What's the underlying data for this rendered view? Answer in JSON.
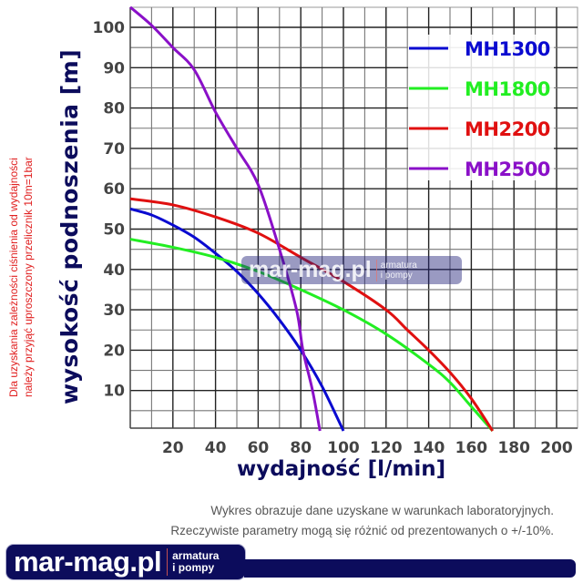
{
  "chart_data": {
    "type": "line",
    "xlabel": "wydajność [l/min]",
    "ylabel": "wysokość podnoszenia [m]",
    "xlim": [
      0,
      210
    ],
    "ylim": [
      0,
      105
    ],
    "xticks": [
      "20",
      "40",
      "60",
      "80",
      "100",
      "120",
      "140",
      "160",
      "180",
      "200"
    ],
    "yticks": [
      "10",
      "20",
      "30",
      "40",
      "50",
      "60",
      "70",
      "80",
      "90",
      "100"
    ],
    "grid": true,
    "legend_position": "top-right",
    "series": [
      {
        "name": "MH1300",
        "color": "#0a0ad0",
        "points": [
          [
            0,
            55
          ],
          [
            10,
            53.5
          ],
          [
            20,
            51
          ],
          [
            30,
            48
          ],
          [
            40,
            44
          ],
          [
            50,
            39.5
          ],
          [
            60,
            34
          ],
          [
            70,
            27.5
          ],
          [
            80,
            20
          ],
          [
            90,
            11
          ],
          [
            100,
            0
          ]
        ]
      },
      {
        "name": "MH1800",
        "color": "#22ee22",
        "points": [
          [
            0,
            47.5
          ],
          [
            20,
            45.5
          ],
          [
            40,
            43
          ],
          [
            60,
            39.5
          ],
          [
            80,
            35
          ],
          [
            100,
            30
          ],
          [
            120,
            24
          ],
          [
            140,
            16.5
          ],
          [
            150,
            12
          ],
          [
            160,
            6
          ],
          [
            170,
            0
          ]
        ]
      },
      {
        "name": "MH2200",
        "color": "#e01010",
        "points": [
          [
            0,
            57.5
          ],
          [
            20,
            56
          ],
          [
            40,
            53
          ],
          [
            60,
            49
          ],
          [
            80,
            43
          ],
          [
            100,
            37
          ],
          [
            120,
            30
          ],
          [
            130,
            25
          ],
          [
            140,
            20
          ],
          [
            150,
            14.5
          ],
          [
            160,
            8
          ],
          [
            170,
            0
          ]
        ]
      },
      {
        "name": "MH2500",
        "color": "#8a10c8",
        "points": [
          [
            0,
            105
          ],
          [
            10,
            100.5
          ],
          [
            20,
            95
          ],
          [
            30,
            89.5
          ],
          [
            40,
            79
          ],
          [
            50,
            70
          ],
          [
            60,
            61
          ],
          [
            70,
            45
          ],
          [
            78,
            30
          ],
          [
            81,
            20
          ],
          [
            85.5,
            10
          ],
          [
            89,
            0
          ]
        ]
      }
    ]
  },
  "side_note": [
    "Dla uzyskania zależności ciśnienia od wydajności",
    "należy przyjąć uproszczony przelicznik 10m=1bar"
  ],
  "footnote": [
    "Wykres obrazuje dane uzyskane w warunkach laboratoryjnych.",
    "Rzeczywiste parametry mogą się różnić od prezentowanych o +/-10%."
  ],
  "logo": {
    "brand": "mar-mag.pl",
    "sub1": "armatura",
    "sub2": "i pompy"
  }
}
